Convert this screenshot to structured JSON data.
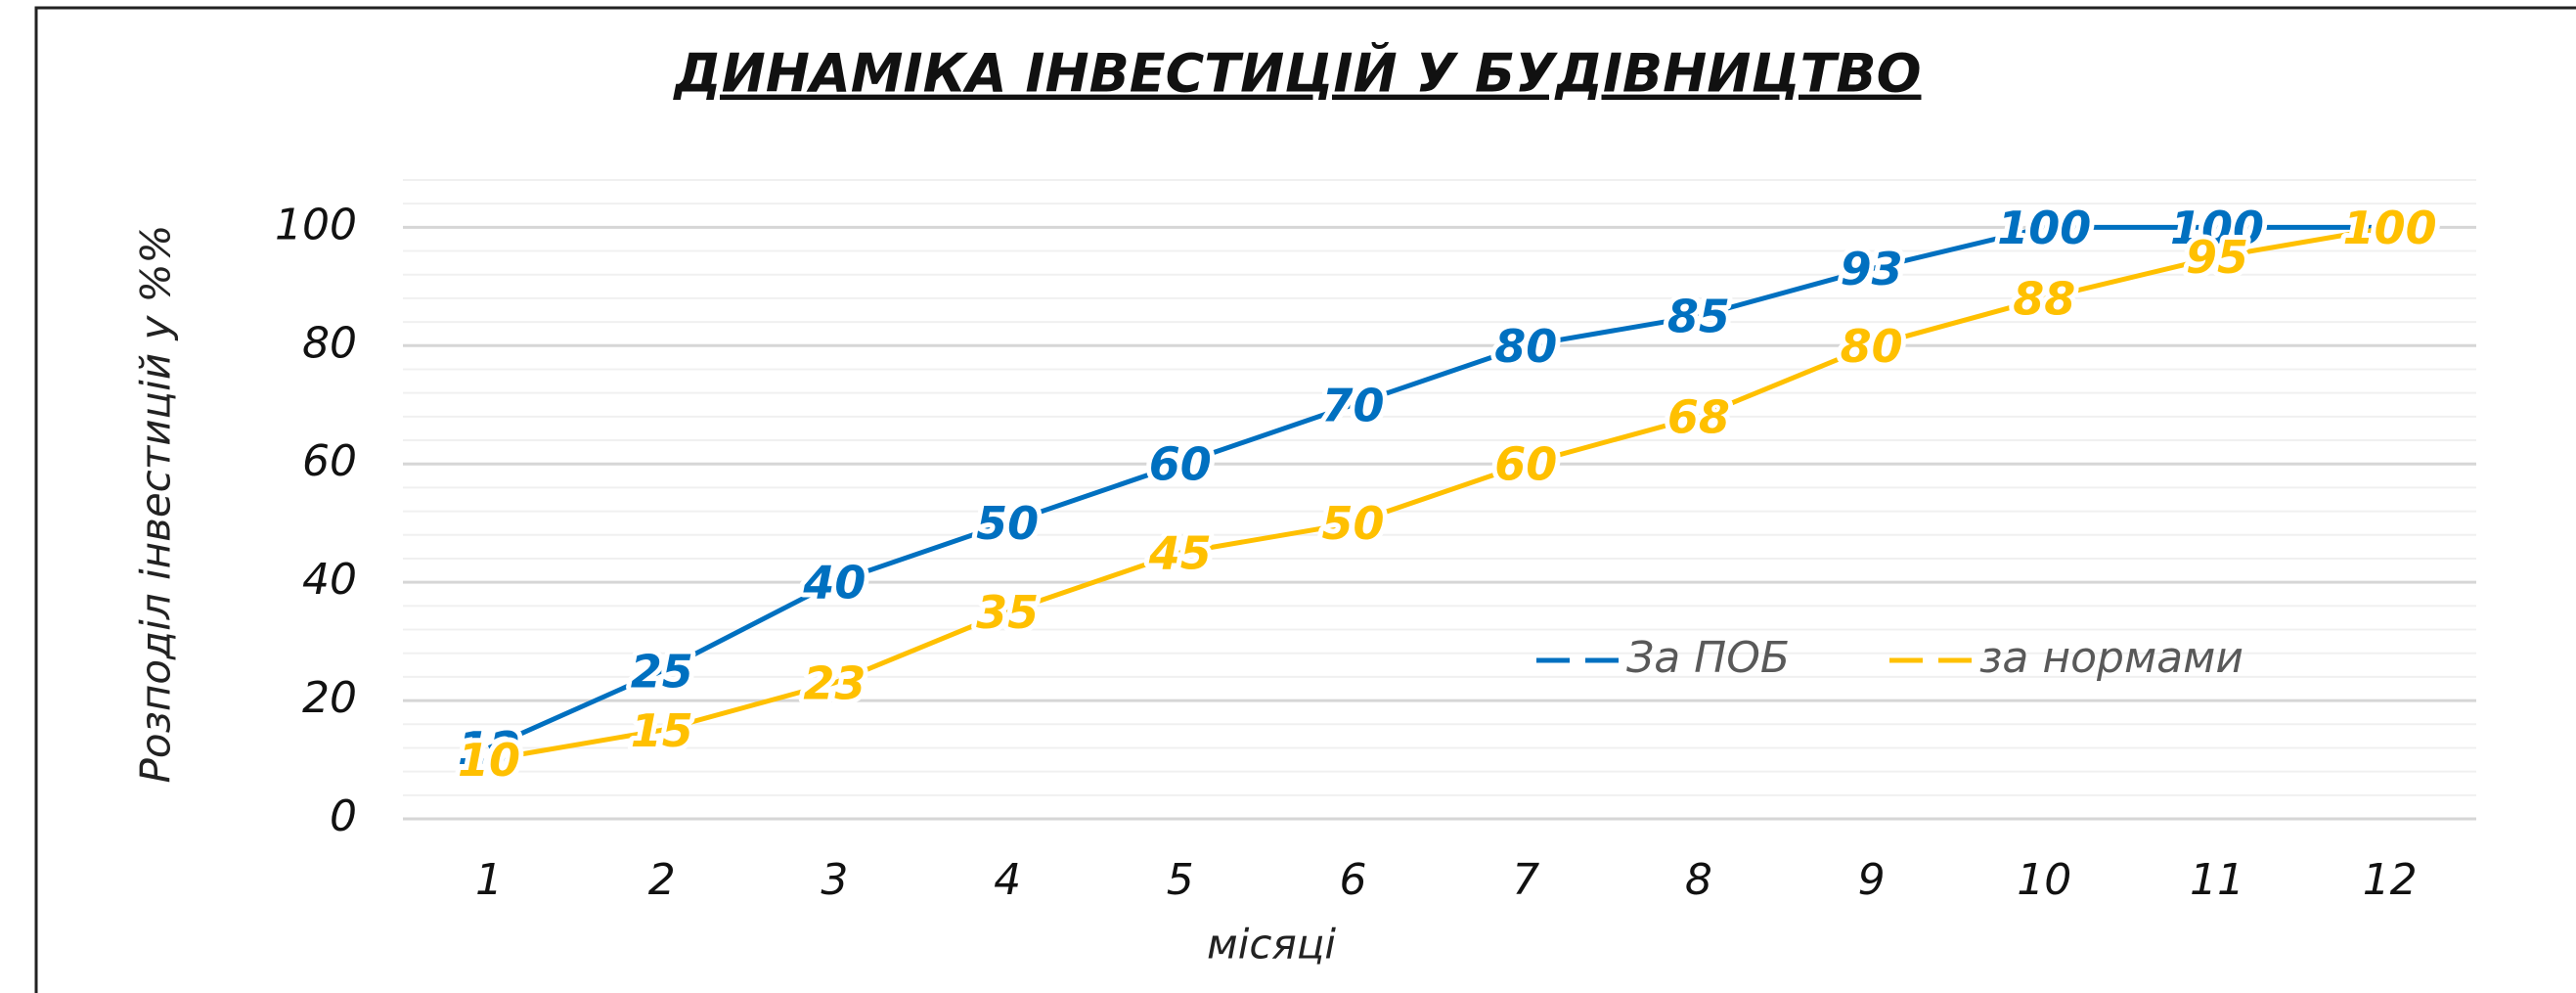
{
  "chart_data": {
    "type": "line",
    "title": "ДИНАМІКА ІНВЕСТИЦІЙ У БУДІВНИЦТВО",
    "x_label": "місяці",
    "y_label": "Розподіл інвестицій  у %%",
    "categories": [
      "1",
      "2",
      "3",
      "4",
      "5",
      "6",
      "7",
      "8",
      "9",
      "10",
      "11",
      "12"
    ],
    "series": [
      {
        "name": "За ПОБ",
        "color": "#0070c0",
        "values": [
          12,
          25,
          40,
          50,
          60,
          70,
          80,
          85,
          93,
          100,
          100,
          100
        ]
      },
      {
        "name": "за нормами",
        "color": "#ffc000",
        "values": [
          10,
          15,
          23,
          35,
          45,
          50,
          60,
          68,
          80,
          88,
          95,
          100
        ]
      }
    ],
    "ylim": [
      0,
      108
    ],
    "yticks": [
      0,
      20,
      40,
      60,
      80,
      100
    ],
    "grid": true,
    "minor_grid_step": 4,
    "legend": "right"
  }
}
